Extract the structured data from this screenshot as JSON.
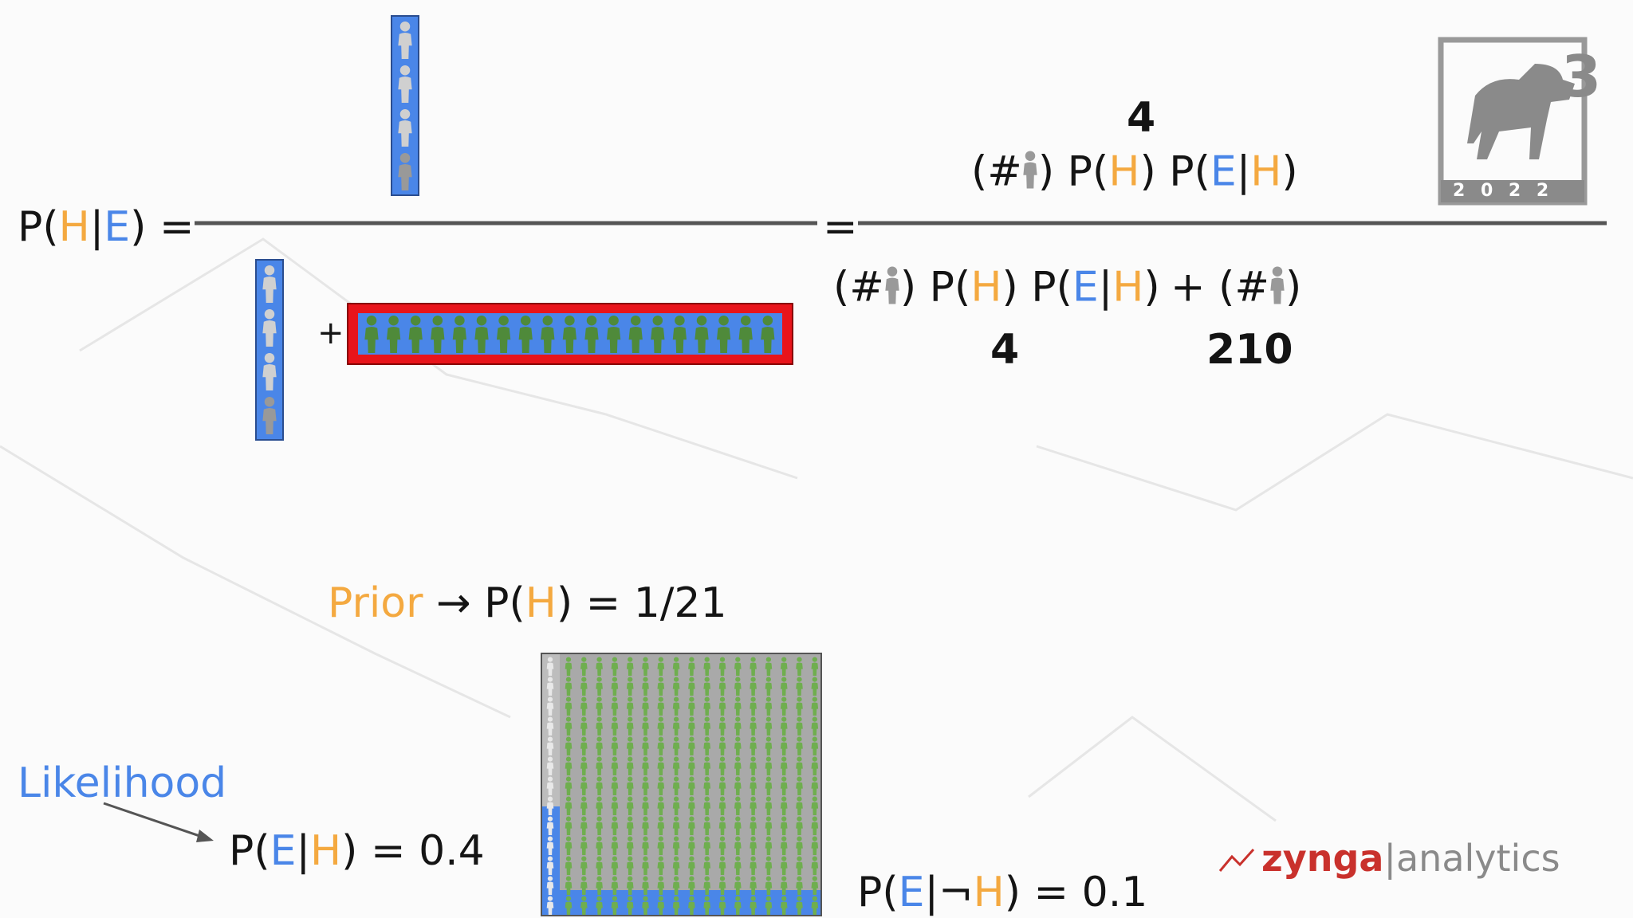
{
  "formula": {
    "lhs": [
      "P(",
      "H",
      "|",
      "E",
      ") ="
    ],
    "plus": "+",
    "equals": "=",
    "num_count": "4",
    "num": [
      "(#",
      ") P(",
      "H",
      ") P(",
      "E",
      "|",
      "H",
      ")"
    ],
    "den_term1": [
      "(#",
      ") P(",
      "H",
      ") P(",
      "E",
      "|",
      "H",
      ")"
    ],
    "den_term2": [
      "+ (#",
      ")"
    ],
    "den_count1": "4",
    "den_count2": "210"
  },
  "prior": [
    "Prior",
    " → P(",
    "H",
    ") = 1/21"
  ],
  "likelihood_label": "Likelihood",
  "likelihood": [
    "P(",
    "E",
    "|",
    "H",
    ") = 0.4"
  ],
  "alternative": [
    "P(",
    "E",
    "|¬",
    "H",
    ") = 0.1"
  ],
  "logo": {
    "brand": "zynga",
    "product": "|analytics"
  },
  "badge": {
    "number": "3",
    "year": "2 0 2 2"
  }
}
